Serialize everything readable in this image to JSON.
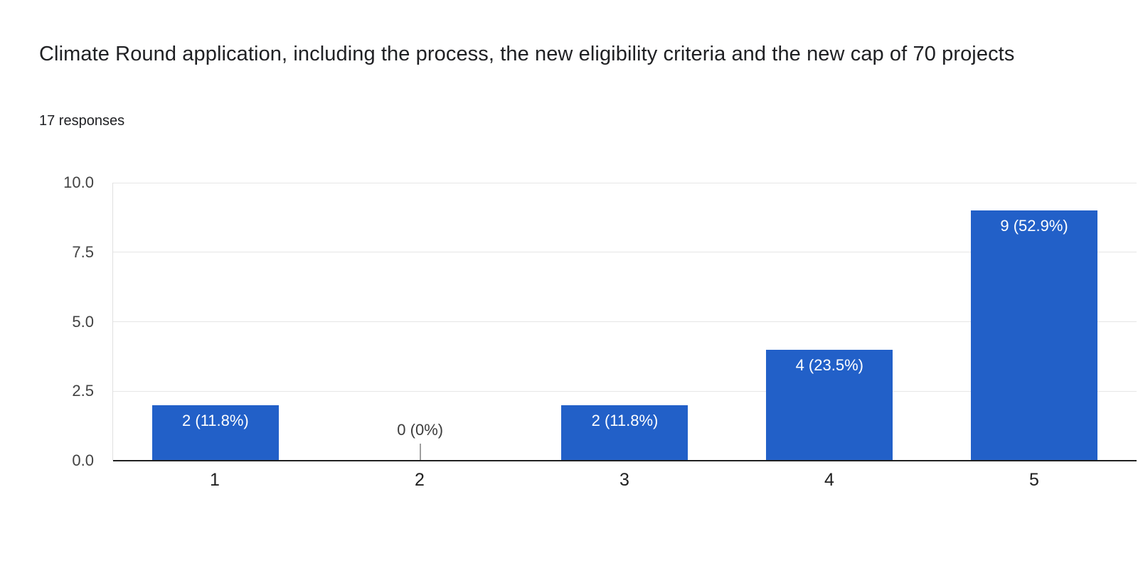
{
  "header": {
    "title": "Climate Round application, including the process, the new eligibility criteria and the new cap of 70 projects",
    "responses_count": "17 responses"
  },
  "chart_data": {
    "type": "bar",
    "title": "Climate Round application, including the process, the new eligibility criteria and the new cap of 70 projects",
    "subtitle": "17 responses",
    "categories": [
      "1",
      "2",
      "3",
      "4",
      "5"
    ],
    "values": [
      2,
      0,
      2,
      4,
      9
    ],
    "value_labels": [
      "2 (11.8%)",
      "0 (0%)",
      "2 (11.8%)",
      "4 (23.5%)",
      "9 (52.9%)"
    ],
    "total_responses": 17,
    "xlabel": "",
    "ylabel": "",
    "ylim": [
      0,
      10
    ],
    "yticks": [
      "0.0",
      "2.5",
      "5.0",
      "7.5",
      "10.0"
    ],
    "grid": true,
    "legend_position": "none",
    "colors": {
      "bar": "#2260c8",
      "label_inside_bar": "#ffffff",
      "label_zero": "#3c3c3c",
      "gridline": "#e6e6e6",
      "baseline": "#212121",
      "axis_text": "#424242",
      "title_text": "#202124",
      "background": "#ffffff"
    }
  }
}
